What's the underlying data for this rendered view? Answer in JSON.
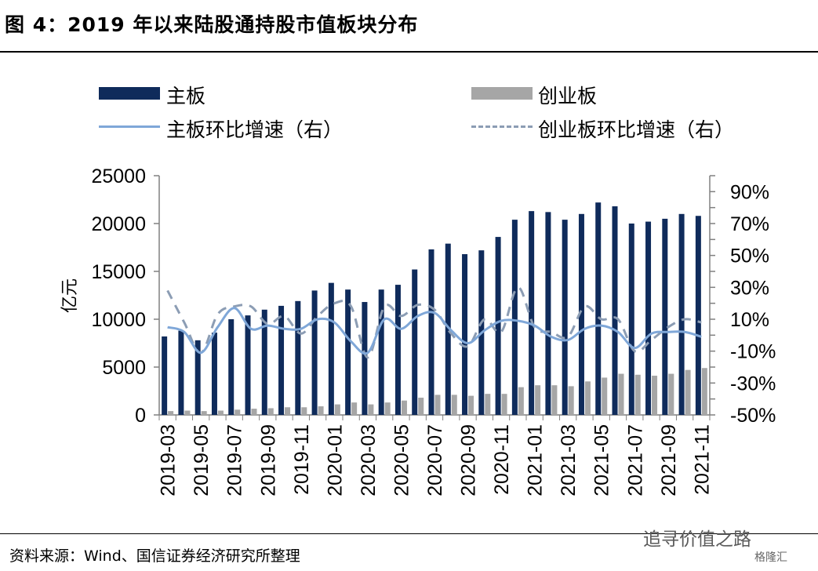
{
  "header": {
    "title": "图 4：2019 年以来陆股通持股市值板块分布",
    "source": "资料来源：Wind、国信证券经济研究所整理",
    "watermark": "追寻价值之路",
    "watermark_small": "格隆汇"
  },
  "colors": {
    "main": "#0f2b5b",
    "gem": "#a6a6a6",
    "main_line": "#7fa7d8",
    "gem_line": "#8c9db4"
  },
  "chart_data": {
    "type": "bar",
    "categories": [
      "2019-03",
      "2019-04",
      "2019-05",
      "2019-06",
      "2019-07",
      "2019-08",
      "2019-09",
      "2019-10",
      "2019-11",
      "2019-12",
      "2020-01",
      "2020-02",
      "2020-03",
      "2020-04",
      "2020-05",
      "2020-06",
      "2020-07",
      "2020-08",
      "2020-09",
      "2020-10",
      "2020-11",
      "2020-12",
      "2021-01",
      "2021-02",
      "2021-03",
      "2021-04",
      "2021-05",
      "2021-06",
      "2021-07",
      "2021-08",
      "2021-09",
      "2021-10",
      "2021-11"
    ],
    "x_tick_labels": [
      "2019-03",
      "2019-05",
      "2019-07",
      "2019-09",
      "2019-11",
      "2020-01",
      "2020-03",
      "2020-05",
      "2020-07",
      "2020-09",
      "2020-11",
      "2021-01",
      "2021-03",
      "2021-05",
      "2021-07",
      "2021-09",
      "2021-11"
    ],
    "ylabel": "亿元",
    "ylim": [
      0,
      25000
    ],
    "yticks": [
      "0",
      "5000",
      "10000",
      "15000",
      "20000",
      "25000"
    ],
    "y2lim": [
      -50,
      100
    ],
    "y2ticks": [
      "-50%",
      "-30%",
      "-10%",
      "10%",
      "30%",
      "50%",
      "70%",
      "90%"
    ],
    "legend": [
      "主板",
      "创业板",
      "主板环比增速（右）",
      "创业板环比增速（右）"
    ],
    "legend_placement": "top",
    "series": [
      {
        "name": "主板",
        "kind": "bar",
        "axis": "left",
        "values": [
          8200,
          8800,
          7800,
          8600,
          10000,
          10400,
          11000,
          11400,
          11900,
          13000,
          13800,
          13100,
          11800,
          13100,
          13600,
          15200,
          17300,
          17900,
          16800,
          17200,
          18600,
          20400,
          21300,
          21200,
          20400,
          21000,
          22200,
          21800,
          20000,
          20200,
          20500,
          21000,
          20800
        ]
      },
      {
        "name": "创业板",
        "kind": "bar",
        "axis": "left",
        "values": [
          400,
          450,
          400,
          450,
          550,
          650,
          700,
          800,
          800,
          900,
          1100,
          1300,
          1100,
          1300,
          1500,
          1800,
          2100,
          2100,
          2000,
          2200,
          2200,
          2900,
          3100,
          3100,
          3000,
          3500,
          3900,
          4300,
          4200,
          4100,
          4300,
          4700,
          4900
        ]
      },
      {
        "name": "主板环比增速（右）",
        "kind": "line",
        "axis": "right",
        "values": [
          5,
          2,
          -11,
          5,
          17,
          4,
          6,
          4,
          4,
          10,
          8,
          -4,
          -11,
          10,
          4,
          12,
          14,
          3,
          -5,
          3,
          9,
          9,
          6,
          -1,
          -3,
          4,
          6,
          2,
          -8,
          1,
          2,
          2,
          -1
        ]
      },
      {
        "name": "创业板环比增速（右）",
        "kind": "line",
        "axis": "right",
        "values": [
          28,
          8,
          -11,
          13,
          18,
          18,
          7,
          12,
          1,
          12,
          20,
          18,
          -14,
          18,
          12,
          19,
          16,
          1,
          -7,
          10,
          2,
          30,
          5,
          2,
          -1,
          18,
          10,
          10,
          -10,
          -3,
          5,
          10,
          8
        ]
      }
    ]
  }
}
